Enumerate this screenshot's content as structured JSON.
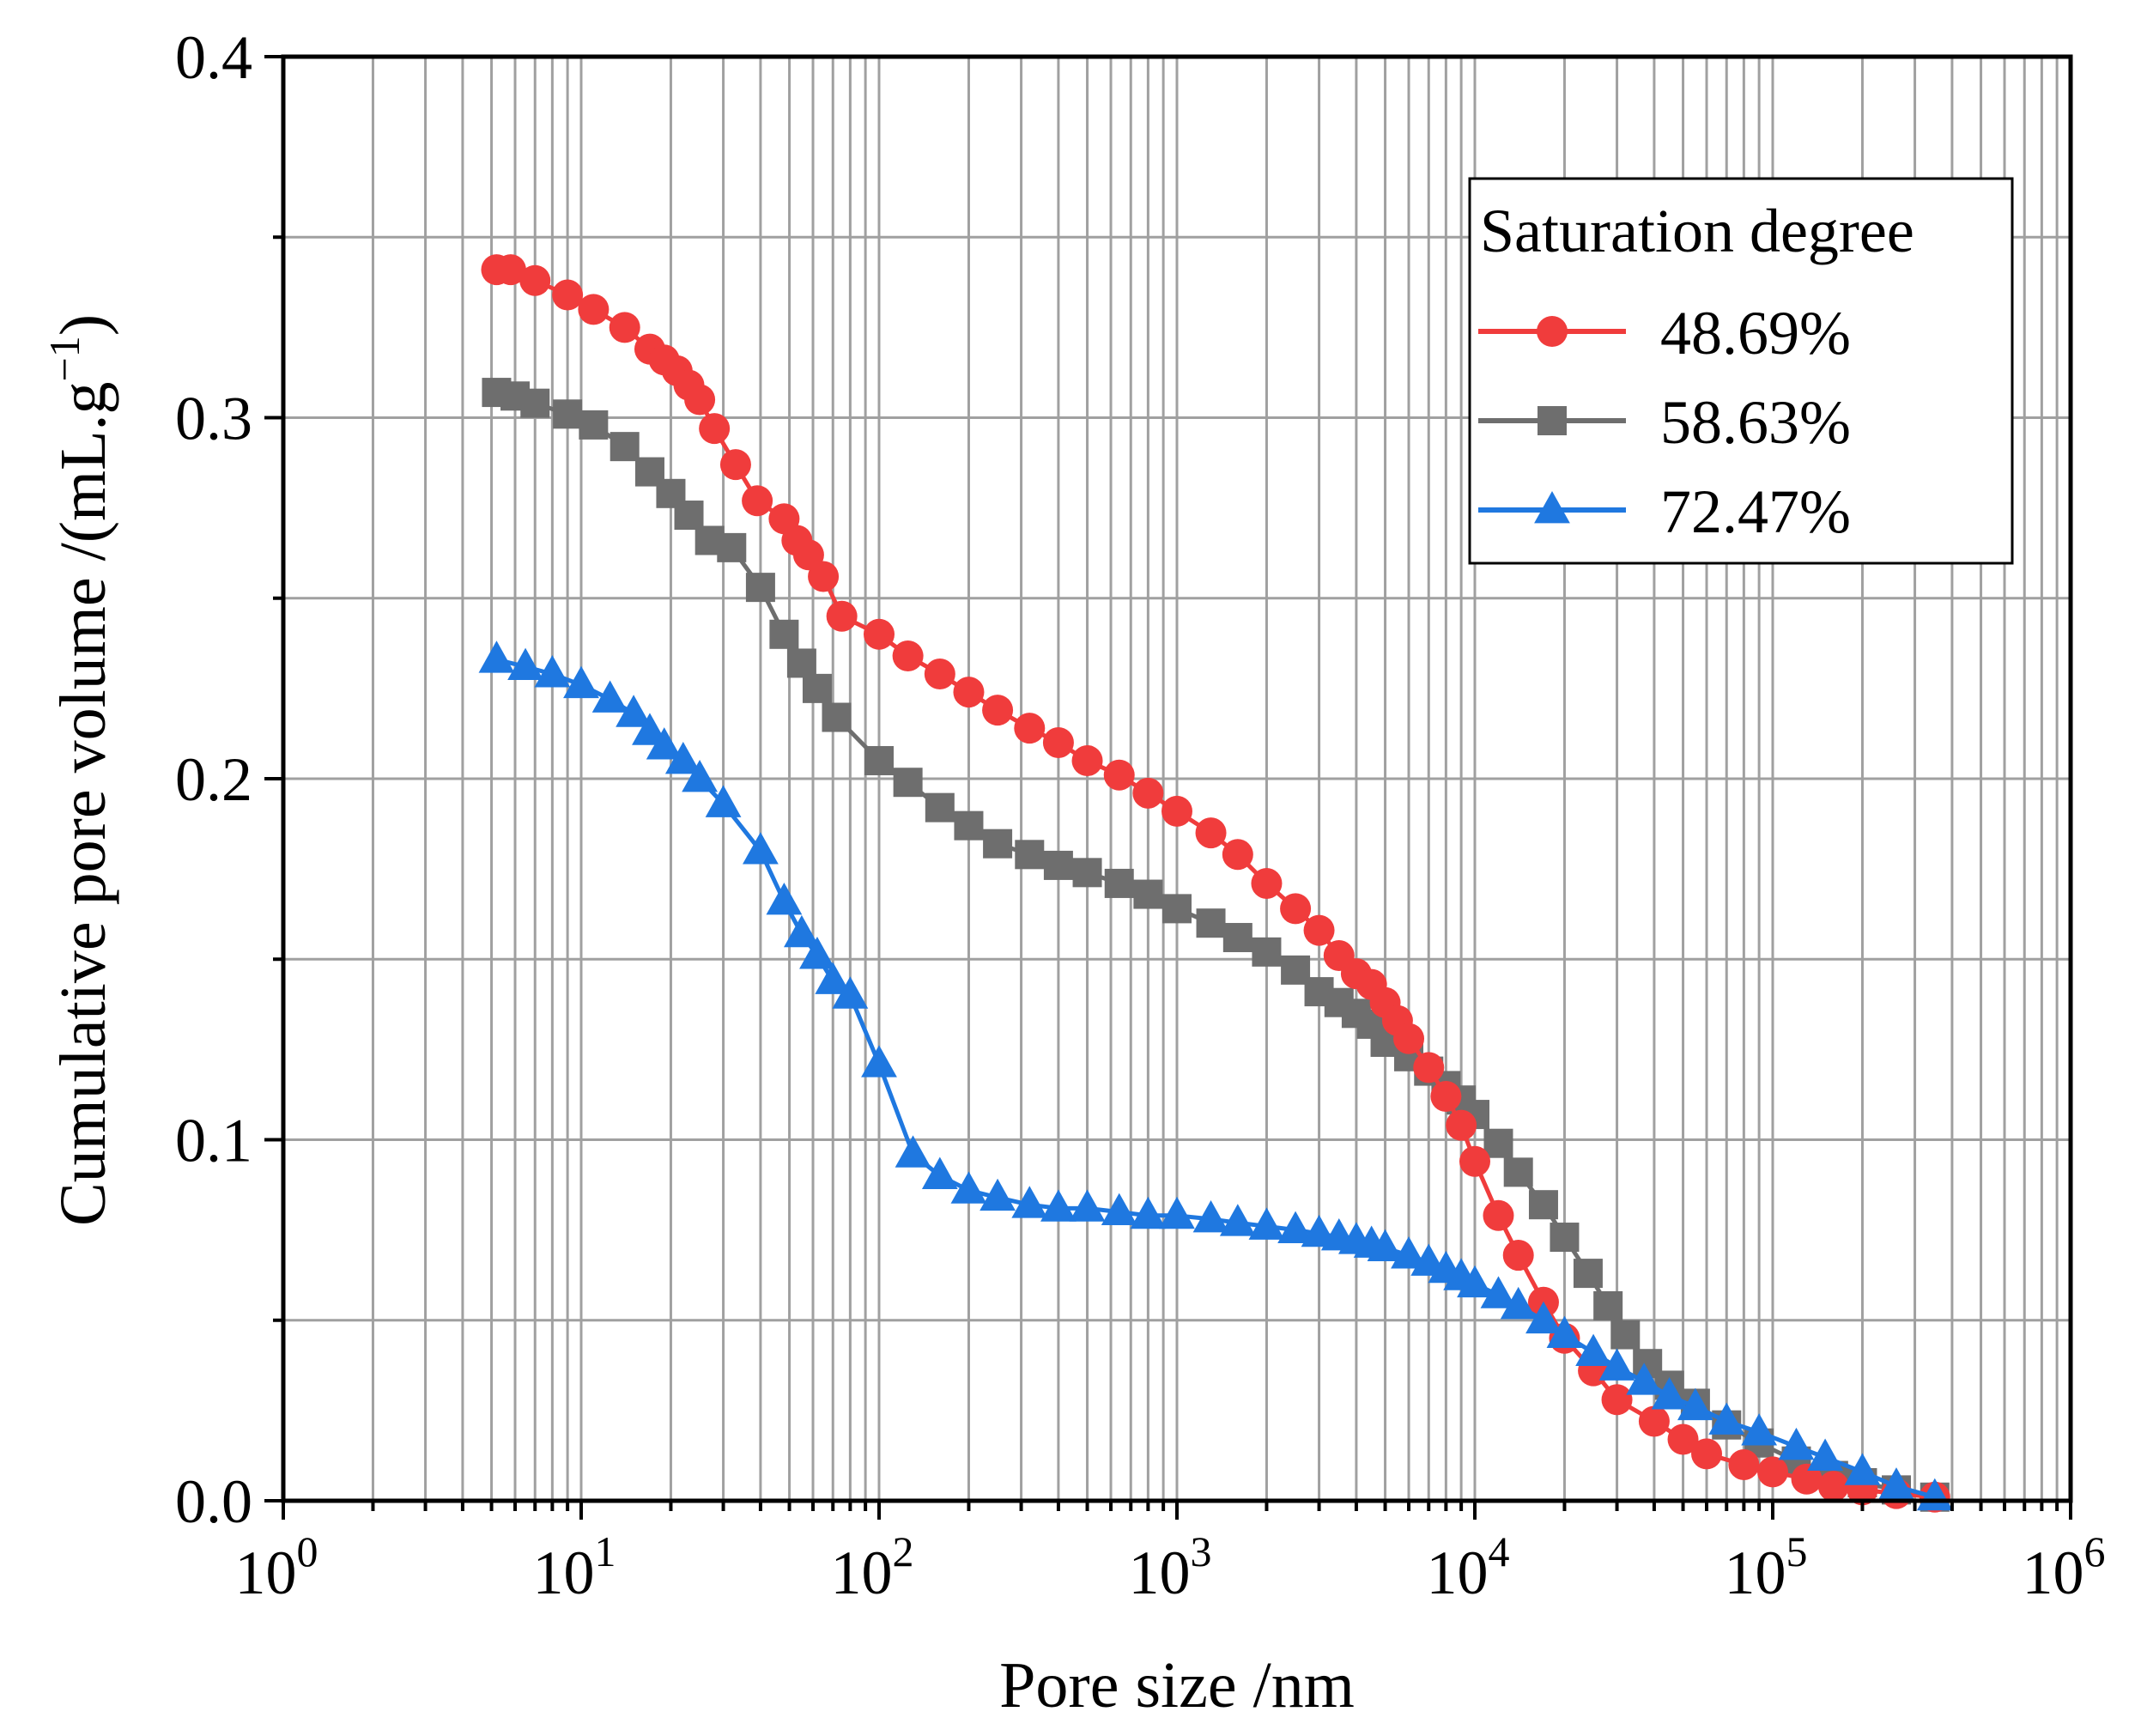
{
  "chart_data": {
    "type": "line",
    "x_scale": "log",
    "xlim": [
      1,
      1000000
    ],
    "ylim": [
      0,
      0.4
    ],
    "xlabel": "Pore size /nm",
    "ylabel_main": "Cumulative pore volume /(mL.g",
    "ylabel_sup": "−1",
    "ylabel_close": ")",
    "grid": true,
    "legend_position": "top-right",
    "legend_title": "Saturation degree",
    "x_ticks": [
      {
        "value": 1,
        "base": "10",
        "exp": "0"
      },
      {
        "value": 10,
        "base": "10",
        "exp": "1"
      },
      {
        "value": 100,
        "base": "10",
        "exp": "2"
      },
      {
        "value": 1000,
        "base": "10",
        "exp": "3"
      },
      {
        "value": 10000,
        "base": "10",
        "exp": "4"
      },
      {
        "value": 100000,
        "base": "10",
        "exp": "5"
      },
      {
        "value": 1000000,
        "base": "10",
        "exp": "6"
      }
    ],
    "y_ticks": [
      {
        "value": 0.0,
        "label": "0.0"
      },
      {
        "value": 0.1,
        "label": "0.1"
      },
      {
        "value": 0.2,
        "label": "0.2"
      },
      {
        "value": 0.3,
        "label": "0.3"
      },
      {
        "value": 0.4,
        "label": "0.4"
      }
    ],
    "series": [
      {
        "name": "48.69%",
        "color": "#f03c3c",
        "marker": "circle",
        "x": [
          5.2,
          5.8,
          7,
          9,
          11,
          14,
          17,
          19,
          21,
          23,
          25,
          28,
          33,
          39,
          48,
          53,
          58,
          65,
          75,
          100,
          125,
          160,
          200,
          250,
          320,
          400,
          500,
          640,
          800,
          1000,
          1300,
          1600,
          2000,
          2500,
          3000,
          3500,
          4000,
          4500,
          5000,
          5500,
          6000,
          7000,
          8000,
          9000,
          10000,
          12000,
          14000,
          17000,
          20000,
          25000,
          30000,
          40000,
          50000,
          60000,
          80000,
          100000,
          130000,
          160000,
          200000,
          260000,
          350000
        ],
        "y": [
          0.341,
          0.341,
          0.338,
          0.334,
          0.33,
          0.325,
          0.319,
          0.316,
          0.313,
          0.309,
          0.305,
          0.297,
          0.287,
          0.277,
          0.272,
          0.266,
          0.262,
          0.256,
          0.245,
          0.24,
          0.234,
          0.229,
          0.224,
          0.219,
          0.214,
          0.21,
          0.205,
          0.201,
          0.196,
          0.191,
          0.185,
          0.179,
          0.171,
          0.164,
          0.158,
          0.151,
          0.146,
          0.143,
          0.138,
          0.133,
          0.128,
          0.12,
          0.112,
          0.104,
          0.094,
          0.079,
          0.068,
          0.055,
          0.045,
          0.036,
          0.028,
          0.022,
          0.017,
          0.013,
          0.01,
          0.008,
          0.006,
          0.004,
          0.003,
          0.002,
          0.001
        ]
      },
      {
        "name": "58.63%",
        "color": "#6e6e6e",
        "marker": "square",
        "x": [
          5.2,
          6,
          7,
          9,
          11,
          14,
          17,
          20,
          23,
          27,
          32,
          40,
          48,
          55,
          62,
          72,
          100,
          125,
          160,
          200,
          250,
          320,
          400,
          500,
          640,
          800,
          1000,
          1300,
          1600,
          2000,
          2500,
          3000,
          3500,
          4000,
          4500,
          5000,
          6000,
          7000,
          8000,
          9000,
          10000,
          12000,
          14000,
          17000,
          20000,
          24000,
          28000,
          32000,
          38000,
          45000,
          55000,
          70000,
          90000,
          120000,
          160000,
          200000,
          260000,
          350000
        ],
        "y": [
          0.307,
          0.306,
          0.304,
          0.301,
          0.298,
          0.292,
          0.285,
          0.279,
          0.273,
          0.266,
          0.264,
          0.253,
          0.24,
          0.232,
          0.225,
          0.217,
          0.205,
          0.199,
          0.192,
          0.187,
          0.182,
          0.179,
          0.176,
          0.174,
          0.171,
          0.168,
          0.164,
          0.16,
          0.156,
          0.152,
          0.147,
          0.141,
          0.138,
          0.135,
          0.132,
          0.127,
          0.123,
          0.119,
          0.115,
          0.111,
          0.107,
          0.099,
          0.091,
          0.082,
          0.073,
          0.063,
          0.054,
          0.046,
          0.038,
          0.032,
          0.027,
          0.021,
          0.016,
          0.011,
          0.007,
          0.005,
          0.003,
          0.001
        ]
      },
      {
        "name": "72.47%",
        "color": "#1f78e0",
        "marker": "triangle",
        "x": [
          5.2,
          6.5,
          8,
          10,
          12.5,
          15,
          17,
          19,
          22,
          25,
          30,
          40,
          48,
          55,
          62,
          70,
          80,
          100,
          130,
          160,
          200,
          250,
          320,
          400,
          500,
          640,
          800,
          1000,
          1300,
          1600,
          2000,
          2500,
          3000,
          3500,
          4000,
          4500,
          5000,
          6000,
          7000,
          8000,
          9000,
          10000,
          12000,
          14000,
          17000,
          20000,
          25000,
          30000,
          37000,
          45000,
          55000,
          70000,
          90000,
          120000,
          150000,
          200000,
          260000,
          350000
        ],
        "y": [
          0.233,
          0.231,
          0.229,
          0.226,
          0.222,
          0.218,
          0.213,
          0.209,
          0.205,
          0.2,
          0.193,
          0.18,
          0.166,
          0.157,
          0.151,
          0.144,
          0.14,
          0.121,
          0.096,
          0.09,
          0.086,
          0.084,
          0.082,
          0.081,
          0.081,
          0.08,
          0.079,
          0.079,
          0.078,
          0.077,
          0.076,
          0.075,
          0.074,
          0.073,
          0.072,
          0.071,
          0.07,
          0.068,
          0.066,
          0.064,
          0.062,
          0.06,
          0.057,
          0.054,
          0.05,
          0.046,
          0.041,
          0.037,
          0.033,
          0.029,
          0.026,
          0.022,
          0.019,
          0.015,
          0.012,
          0.008,
          0.004,
          0.001
        ]
      }
    ]
  }
}
